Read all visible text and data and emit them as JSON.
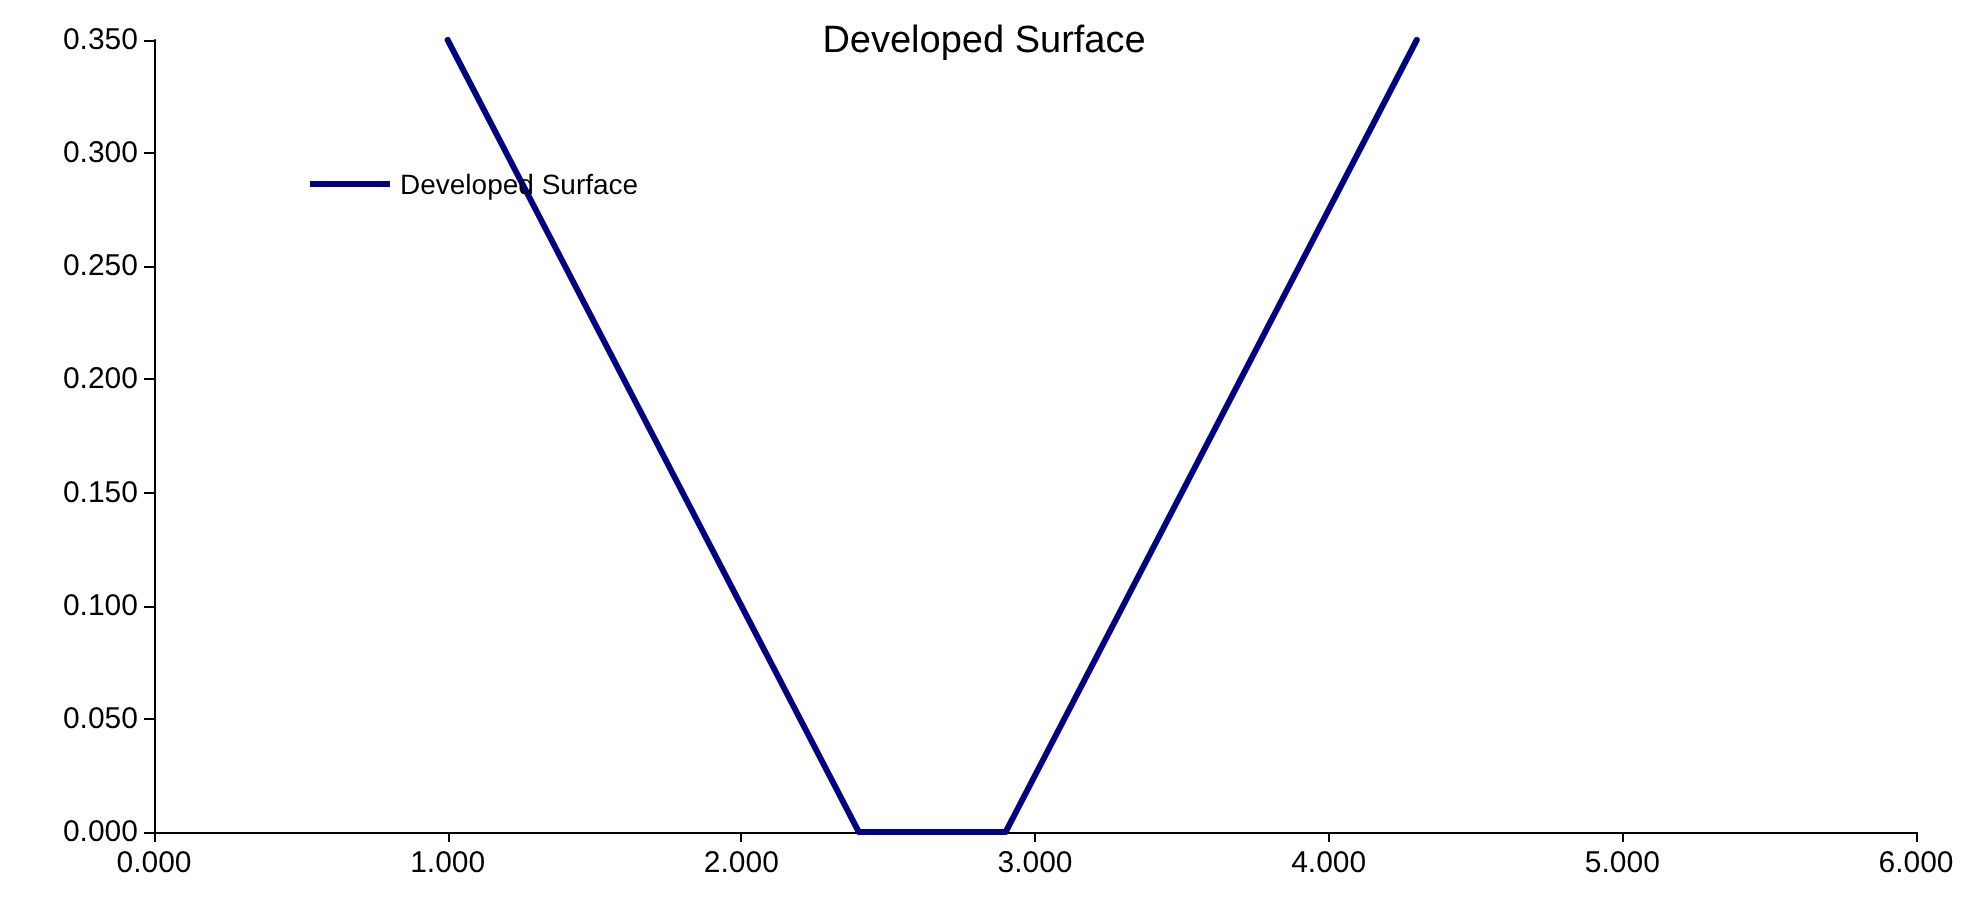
{
  "chart_data": {
    "type": "line",
    "title": "Developed Surface",
    "x": [
      1.0,
      2.4,
      2.9,
      4.3
    ],
    "series": [
      {
        "name": "Developed Surface",
        "color": "#000080",
        "values": [
          0.35,
          0,
          0,
          0.35
        ]
      }
    ],
    "xlim": [
      0,
      6
    ],
    "xticks": [
      {
        "value": 0,
        "label": "0.000"
      },
      {
        "value": 1,
        "label": "1.000"
      },
      {
        "value": 2,
        "label": "2.000"
      },
      {
        "value": 3,
        "label": "3.000"
      },
      {
        "value": 4,
        "label": "4.000"
      },
      {
        "value": 5,
        "label": "5.000"
      },
      {
        "value": 6,
        "label": "6.000"
      }
    ],
    "ylim": [
      0,
      0.35
    ],
    "yticks": [
      {
        "value": 0,
        "label": "0.000"
      },
      {
        "value": 0.05,
        "label": "0.050"
      },
      {
        "value": 0.1,
        "label": "0.100"
      },
      {
        "value": 0.15,
        "label": "0.150"
      },
      {
        "value": 0.2,
        "label": "0.200"
      },
      {
        "value": 0.25,
        "label": "0.250"
      },
      {
        "value": 0.3,
        "label": "0.300"
      },
      {
        "value": 0.35,
        "label": "0.350"
      }
    ],
    "grid": false,
    "legend": "top left",
    "marker": "none",
    "line_style": "solid"
  }
}
